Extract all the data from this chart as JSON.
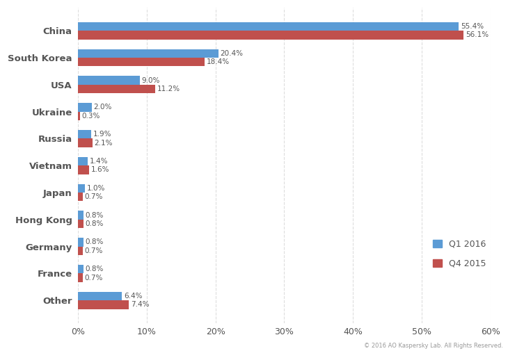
{
  "categories": [
    "China",
    "South Korea",
    "USA",
    "Ukraine",
    "Russia",
    "Vietnam",
    "Japan",
    "Hong Kong",
    "Germany",
    "France",
    "Other"
  ],
  "q1_2016": [
    55.4,
    20.4,
    9.0,
    2.0,
    1.9,
    1.4,
    1.0,
    0.8,
    0.8,
    0.8,
    6.4
  ],
  "q4_2015": [
    56.1,
    18.4,
    11.2,
    0.3,
    2.1,
    1.6,
    0.7,
    0.8,
    0.7,
    0.7,
    7.4
  ],
  "q1_color": "#5B9BD5",
  "q4_color": "#C0504D",
  "background_color": "#FFFFFF",
  "grid_color": "#DDDDDD",
  "label_color": "#555555",
  "legend_q1": "Q1 2016",
  "legend_q4": "Q4 2015",
  "xlim": [
    0,
    60
  ],
  "xtick_labels": [
    "0%",
    "10%",
    "20%",
    "30%",
    "40%",
    "50%",
    "60%"
  ],
  "xtick_values": [
    0,
    10,
    20,
    30,
    40,
    50,
    60
  ],
  "footnote": "© 2016 AO Kaspersky Lab. All Rights Reserved.",
  "bar_height": 0.32,
  "label_fontsize": 7.5,
  "category_fontsize": 9.5,
  "tick_fontsize": 9
}
